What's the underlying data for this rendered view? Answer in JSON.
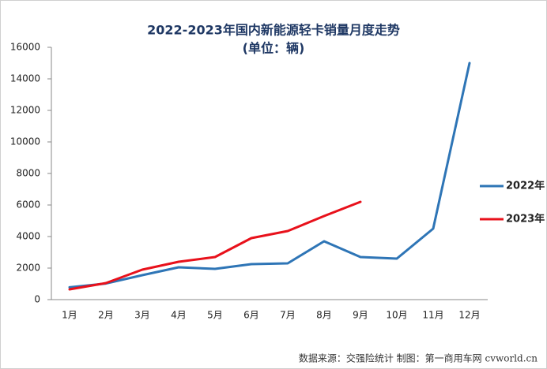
{
  "chart_data": {
    "type": "line",
    "title": "2022-2023年国内新能源轻卡销量月度走势",
    "subtitle": "(单位：辆)",
    "source": "数据来源：交强险统计  制图：第一商用车网 cvworld.cn",
    "categories": [
      "1月",
      "2月",
      "3月",
      "4月",
      "5月",
      "6月",
      "7月",
      "8月",
      "9月",
      "10月",
      "11月",
      "12月"
    ],
    "series": [
      {
        "name": "2022年",
        "color": "#2e75b6",
        "values": [
          780,
          1020,
          1550,
          2050,
          1950,
          2250,
          2300,
          3700,
          2700,
          2600,
          4500,
          15000
        ]
      },
      {
        "name": "2023年",
        "color": "#e8111b",
        "values": [
          650,
          1050,
          1900,
          2400,
          2700,
          3900,
          4350,
          5300,
          6200,
          null,
          null,
          null
        ]
      }
    ],
    "ylim": [
      0,
      16000
    ],
    "yticks": [
      0,
      2000,
      4000,
      6000,
      8000,
      10000,
      12000,
      14000,
      16000
    ],
    "grid": false,
    "legend": "right"
  }
}
